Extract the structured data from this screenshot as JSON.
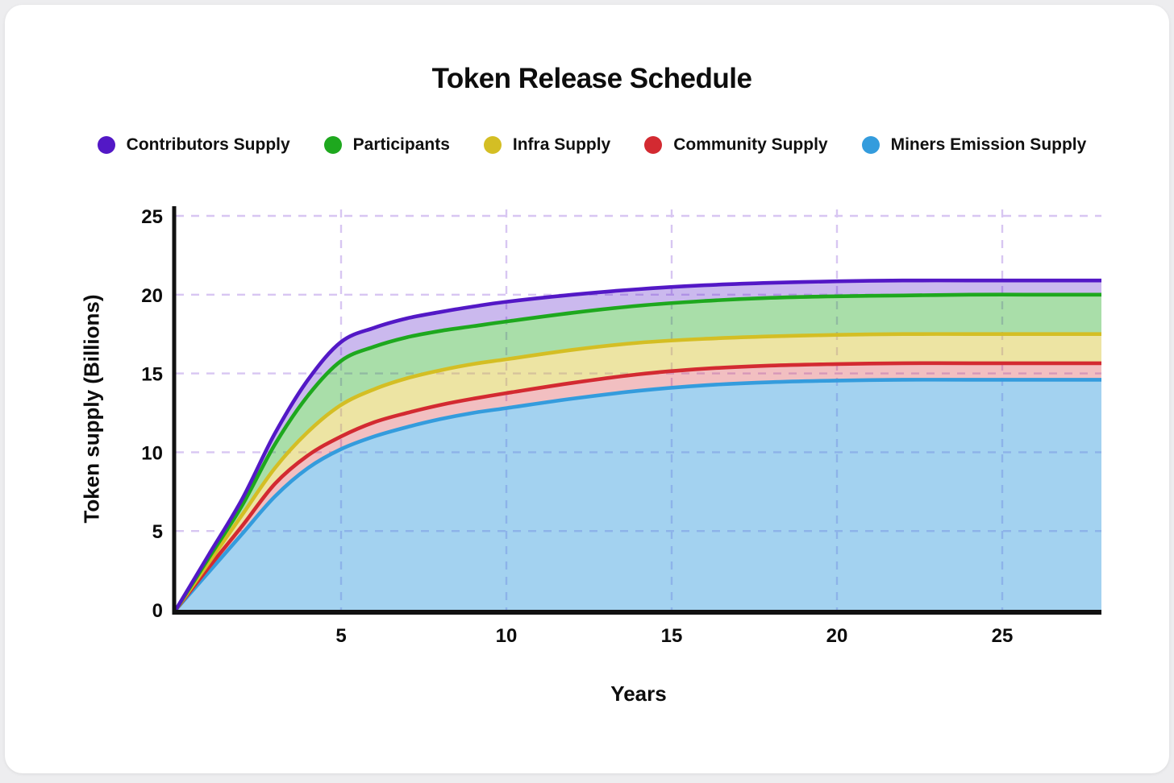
{
  "page": {
    "title": "Token Release Schedule"
  },
  "axes": {
    "x_label": "Years",
    "y_label": "Token supply (Billions)",
    "x_ticks": [
      5,
      10,
      15,
      20,
      25
    ],
    "y_ticks": [
      0,
      5,
      10,
      15,
      20,
      25
    ]
  },
  "legend": {
    "items": [
      {
        "label": "Contributors Supply",
        "color": "#5318c6"
      },
      {
        "label": "Participants",
        "color": "#1ea81e"
      },
      {
        "label": "Infra Supply",
        "color": "#d4be24"
      },
      {
        "label": "Community Supply",
        "color": "#d32a31"
      },
      {
        "label": "Miners Emission Supply",
        "color": "#349cdd"
      }
    ]
  },
  "colors": {
    "page_background": "#ededef",
    "card_background": "#ffffff",
    "text": "#0d0d0d",
    "grid": "#d8c6f2",
    "axis": "#111111"
  },
  "chart_data": {
    "type": "area",
    "stacked": true,
    "title": "Token Release Schedule",
    "xlabel": "Years",
    "ylabel": "Token supply (Billions)",
    "xlim": [
      0,
      28
    ],
    "ylim": [
      0,
      25
    ],
    "grid": "dashed",
    "legend_position": "top",
    "values_are": "cumulative stacked totals (upper boundary of each band), billions of tokens",
    "x": [
      0,
      1,
      2,
      3,
      4,
      5,
      6,
      7,
      8,
      9,
      10,
      12,
      14,
      16,
      18,
      20,
      22,
      24,
      26,
      28
    ],
    "series": [
      {
        "name": "Miners Emission Supply",
        "color": "#349cdd",
        "fill_alpha": 0.45,
        "cumulative": [
          0,
          2.4,
          4.8,
          7.2,
          9.0,
          10.2,
          11.0,
          11.6,
          12.1,
          12.5,
          12.8,
          13.4,
          13.9,
          14.25,
          14.45,
          14.55,
          14.6,
          14.6,
          14.6,
          14.6
        ]
      },
      {
        "name": "Community Supply",
        "color": "#d32a31",
        "fill_alpha": 0.3,
        "cumulative": [
          0,
          2.7,
          5.3,
          8.0,
          9.8,
          11.0,
          11.9,
          12.5,
          13.0,
          13.4,
          13.75,
          14.4,
          14.95,
          15.3,
          15.5,
          15.6,
          15.65,
          15.65,
          15.65,
          15.65
        ]
      },
      {
        "name": "Infra Supply",
        "color": "#d4be24",
        "fill_alpha": 0.42,
        "cumulative": [
          0,
          3.0,
          6.0,
          9.0,
          11.3,
          13.0,
          14.0,
          14.7,
          15.2,
          15.6,
          15.9,
          16.5,
          16.95,
          17.2,
          17.35,
          17.45,
          17.5,
          17.5,
          17.5,
          17.5
        ]
      },
      {
        "name": "Participants",
        "color": "#1ea81e",
        "fill_alpha": 0.38,
        "cumulative": [
          0,
          3.3,
          6.6,
          10.5,
          13.6,
          15.8,
          16.7,
          17.3,
          17.7,
          18.0,
          18.3,
          18.85,
          19.3,
          19.6,
          19.8,
          19.9,
          19.95,
          20.0,
          20.0,
          20.0
        ]
      },
      {
        "name": "Contributors Supply",
        "color": "#5318c6",
        "fill_alpha": 0.3,
        "cumulative": [
          0,
          3.5,
          7.0,
          11.2,
          14.6,
          17.0,
          17.9,
          18.5,
          18.9,
          19.25,
          19.55,
          20.0,
          20.35,
          20.6,
          20.75,
          20.85,
          20.9,
          20.9,
          20.9,
          20.9
        ]
      }
    ]
  }
}
